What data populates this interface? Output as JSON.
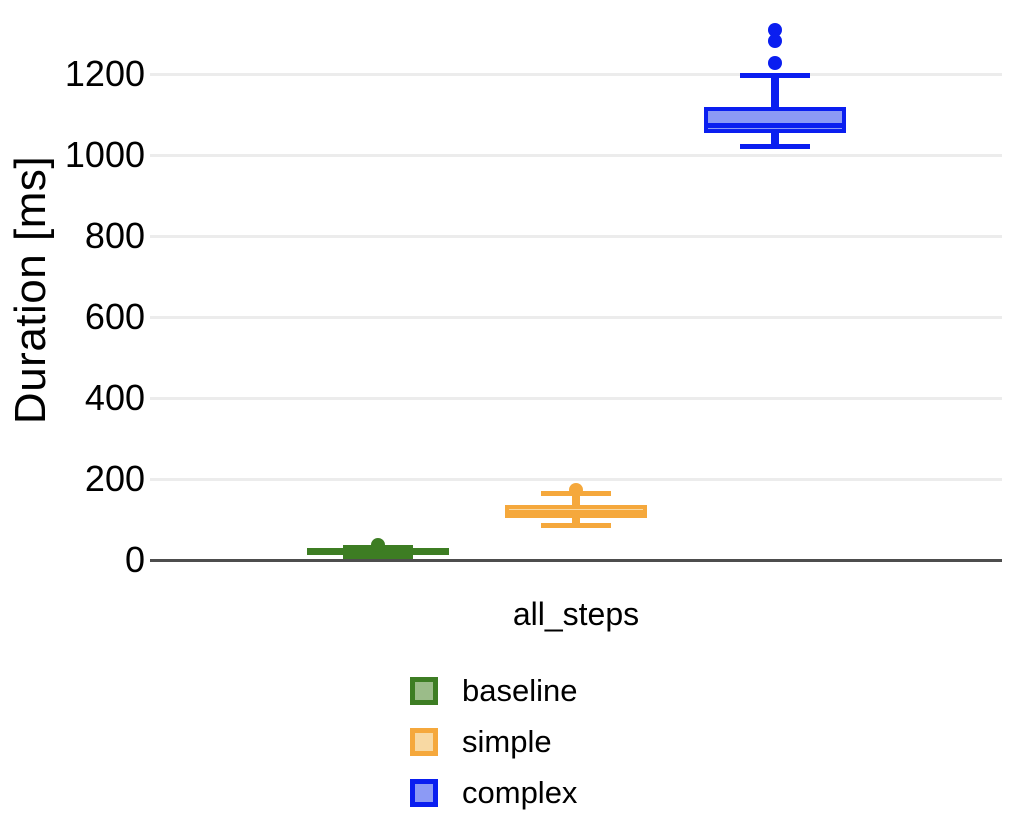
{
  "chart_data": {
    "type": "boxplot",
    "title": "",
    "ylabel": "Duration [ms]",
    "xlabel": "",
    "categories": [
      "all_steps"
    ],
    "yticks": [
      0,
      200,
      400,
      600,
      800,
      1000,
      1200
    ],
    "ylim": [
      0,
      1385
    ],
    "grid": true,
    "legend_position": "bottom-center",
    "background": "#ffffff",
    "gridline_color": "#ececec",
    "axis_line_color": "#4d4d4d",
    "series": [
      {
        "name": "baseline",
        "color_border": "#3d7d23",
        "color_fill": "#9bbc89",
        "whisker_low": 9,
        "q1": 12,
        "median": 21,
        "q3": 30,
        "whisker_high": 32,
        "outliers": [
          36
        ]
      },
      {
        "name": "simple",
        "color_border": "#f5a83c",
        "color_fill": "#f8d9a3",
        "whisker_low": 84,
        "q1": 104,
        "median": 117,
        "q3": 136,
        "whisker_high": 164,
        "outliers": [
          174
        ]
      },
      {
        "name": "complex",
        "color_border": "#0a1ef0",
        "color_fill": "#8c9af5",
        "whisker_low": 1020,
        "q1": 1054,
        "median": 1074,
        "q3": 1118,
        "whisker_high": 1197,
        "outliers": [
          1227,
          1281,
          1309
        ]
      }
    ]
  }
}
